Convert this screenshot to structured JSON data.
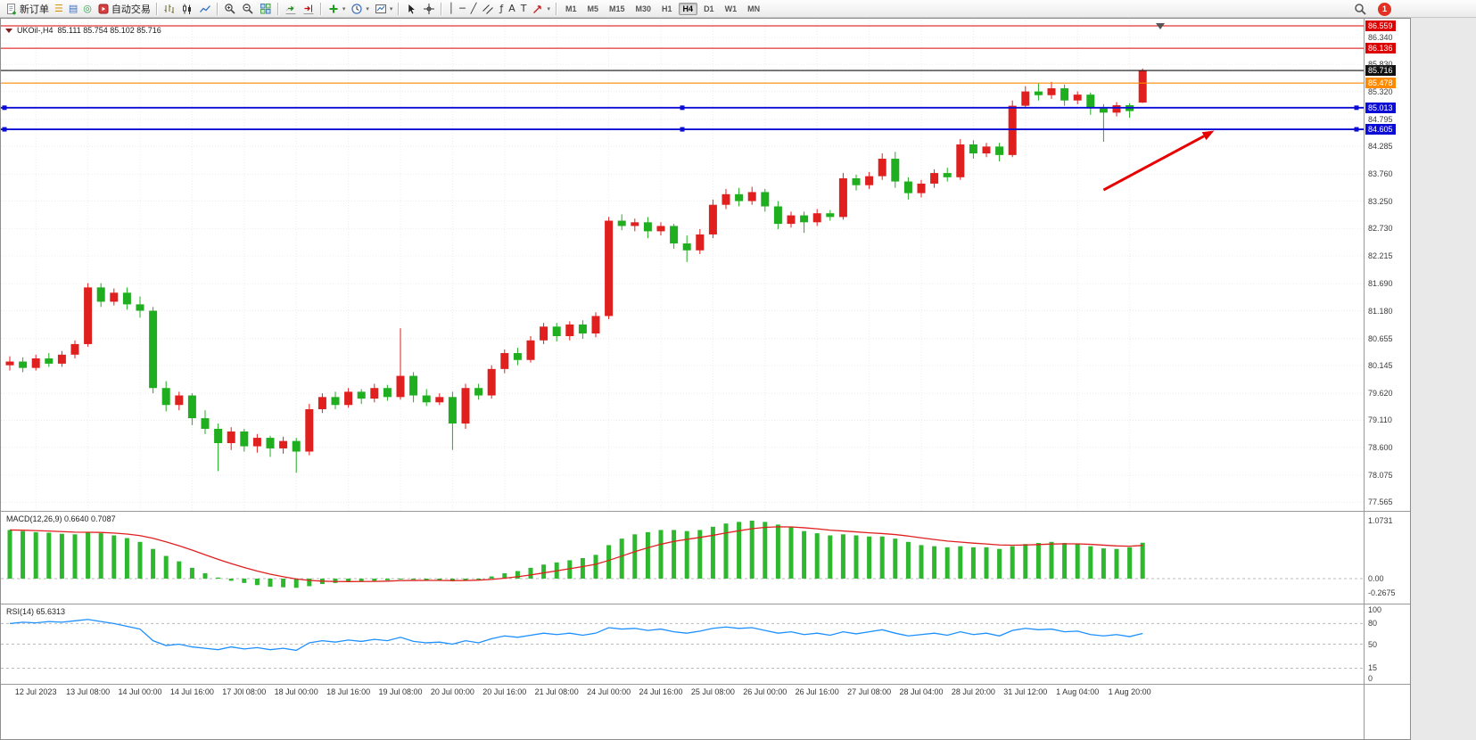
{
  "toolbar": {
    "notification_count": "1",
    "active_timeframe": "H4",
    "timeframes": [
      "M1",
      "M5",
      "M15",
      "M30",
      "H1",
      "H4",
      "D1",
      "W1",
      "MN"
    ],
    "groups": [
      [
        {
          "name": "new-order-button",
          "icon": "order",
          "label": "新订单"
        },
        {
          "name": "market-watch-icon",
          "glyph": "☰",
          "color": "#d09500"
        },
        {
          "name": "data-window-icon",
          "glyph": "▤",
          "color": "#3a6ebf"
        },
        {
          "name": "alerts-icon",
          "glyph": "◎",
          "color": "#2e9e4f"
        },
        {
          "name": "autotrading-button",
          "icon": "autotrading",
          "label": "自动交易"
        }
      ],
      [
        {
          "name": "bar-chart-icon",
          "icon": "bars"
        },
        {
          "name": "candlestick-chart-icon",
          "icon": "candles"
        },
        {
          "name": "line-chart-icon",
          "icon": "line"
        }
      ],
      [
        {
          "name": "zoom-in-icon",
          "icon": "zoom-in"
        },
        {
          "name": "zoom-out-icon",
          "icon": "zoom-out"
        },
        {
          "name": "tile-windows-icon",
          "icon": "tile"
        }
      ],
      [
        {
          "name": "auto-scroll-icon",
          "icon": "autoscroll"
        },
        {
          "name": "chart-shift-icon",
          "icon": "shift"
        }
      ],
      [
        {
          "name": "add-indicator-button",
          "icon": "plus",
          "caret": true
        },
        {
          "name": "period-button",
          "icon": "clock",
          "caret": true
        },
        {
          "name": "template-button",
          "icon": "template",
          "caret": true
        }
      ],
      [
        {
          "name": "cursor-icon",
          "icon": "cursor"
        },
        {
          "name": "crosshair-icon",
          "icon": "crosshair"
        }
      ],
      [
        {
          "name": "vertical-line-icon",
          "glyph": "│",
          "color": "#333"
        },
        {
          "name": "horizontal-line-icon",
          "glyph": "─",
          "color": "#333"
        },
        {
          "name": "trendline-icon",
          "glyph": "╱",
          "color": "#333"
        },
        {
          "name": "channel-icon",
          "icon": "channel"
        },
        {
          "name": "fibonacci-icon",
          "glyph": "ƒ",
          "color": "#333"
        },
        {
          "name": "text-icon",
          "glyph": "A",
          "color": "#333"
        },
        {
          "name": "label-icon",
          "glyph": "T",
          "color": "#333"
        },
        {
          "name": "arrows-button",
          "icon": "arrowtool",
          "caret": true
        }
      ]
    ]
  },
  "chart_window": {
    "symbol_header": {
      "symbol": "UKOil-,H4",
      "ohlc": "85.111 85.754 85.102 85.716"
    },
    "indicator_labels": {
      "macd": "MACD(12,26,9) 0.6640 0.7087",
      "rsi": "RSI(14) 65.6313"
    }
  },
  "chart_data": {
    "type": "candlestick",
    "symbol": "UKOil-",
    "timeframe": "H4",
    "current_bar": {
      "open": 85.111,
      "high": 85.754,
      "low": 85.102,
      "close": 85.716
    },
    "bid_price": 85.716,
    "price_axis": {
      "labels": [
        86.34,
        85.83,
        85.32,
        84.795,
        84.285,
        83.76,
        83.25,
        82.73,
        82.215,
        81.69,
        81.18,
        80.655,
        80.145,
        79.62,
        79.11,
        78.6,
        78.075,
        77.565
      ],
      "min": 77.565,
      "max": 86.34
    },
    "time_labels": [
      "12 Jul 2023",
      "13 Jul 08:00",
      "14 Jul 00:00",
      "14 Jul 16:00",
      "17 J0l 08:00",
      "18 Jul 00:00",
      "18 Jul 16:00",
      "19 Jul 08:00",
      "20 Jul 00:00",
      "20 Jul 16:00",
      "21 Jul 08:00",
      "24 Jul 00:00",
      "24 Jul 16:00",
      "25 Jul 08:00",
      "26 Jul 00:00",
      "26 Jul 16:00",
      "27 Jul 08:00",
      "28 Jul 04:00",
      "28 Jul 20:00",
      "31 Jul 12:00",
      "1 Aug 04:00",
      "1 Aug 20:00"
    ],
    "colors": {
      "up": "#e01f1f",
      "down": "#1fae1f",
      "grid": "#ececec",
      "macd_hist": "#2eb82e",
      "macd_signal": "#e02020",
      "rsi_line": "#1e90ff"
    },
    "candles": [
      [
        80.15,
        80.32,
        80.05,
        80.22
      ],
      [
        80.22,
        80.3,
        80.02,
        80.1
      ],
      [
        80.1,
        80.35,
        80.05,
        80.28
      ],
      [
        80.28,
        80.38,
        80.12,
        80.18
      ],
      [
        80.18,
        80.42,
        80.12,
        80.35
      ],
      [
        80.35,
        80.62,
        80.28,
        80.55
      ],
      [
        80.55,
        81.7,
        80.5,
        81.62
      ],
      [
        81.62,
        81.7,
        81.25,
        81.35
      ],
      [
        81.35,
        81.6,
        81.28,
        81.52
      ],
      [
        81.52,
        81.62,
        81.2,
        81.3
      ],
      [
        81.3,
        81.45,
        81.05,
        81.18
      ],
      [
        81.18,
        81.25,
        79.62,
        79.72
      ],
      [
        79.72,
        79.85,
        79.28,
        79.4
      ],
      [
        79.4,
        79.65,
        79.3,
        79.58
      ],
      [
        79.58,
        79.62,
        79.02,
        79.15
      ],
      [
        79.15,
        79.3,
        78.85,
        78.95
      ],
      [
        78.95,
        79.05,
        78.15,
        78.68
      ],
      [
        78.68,
        78.98,
        78.55,
        78.9
      ],
      [
        78.9,
        78.95,
        78.52,
        78.62
      ],
      [
        78.62,
        78.85,
        78.5,
        78.78
      ],
      [
        78.78,
        78.82,
        78.42,
        78.58
      ],
      [
        78.58,
        78.8,
        78.48,
        78.72
      ],
      [
        78.72,
        78.78,
        78.12,
        78.52
      ],
      [
        78.52,
        79.42,
        78.45,
        79.32
      ],
      [
        79.32,
        79.62,
        79.25,
        79.55
      ],
      [
        79.55,
        79.65,
        79.32,
        79.4
      ],
      [
        79.4,
        79.72,
        79.35,
        79.65
      ],
      [
        79.65,
        79.7,
        79.42,
        79.52
      ],
      [
        79.52,
        79.8,
        79.45,
        79.72
      ],
      [
        79.72,
        79.78,
        79.48,
        79.55
      ],
      [
        79.55,
        80.85,
        79.5,
        79.95
      ],
      [
        79.95,
        80.02,
        79.45,
        79.58
      ],
      [
        79.58,
        79.7,
        79.38,
        79.45
      ],
      [
        79.45,
        79.62,
        79.4,
        79.55
      ],
      [
        79.55,
        79.65,
        78.55,
        79.05
      ],
      [
        79.05,
        79.8,
        78.95,
        79.72
      ],
      [
        79.72,
        79.8,
        79.5,
        79.58
      ],
      [
        79.58,
        80.15,
        79.52,
        80.08
      ],
      [
        80.08,
        80.45,
        80.0,
        80.38
      ],
      [
        80.38,
        80.48,
        80.15,
        80.25
      ],
      [
        80.25,
        80.7,
        80.2,
        80.62
      ],
      [
        80.62,
        80.95,
        80.55,
        80.88
      ],
      [
        80.88,
        80.95,
        80.6,
        80.7
      ],
      [
        80.7,
        80.98,
        80.62,
        80.92
      ],
      [
        80.92,
        81.0,
        80.65,
        80.75
      ],
      [
        80.75,
        81.15,
        80.68,
        81.08
      ],
      [
        81.08,
        82.95,
        81.02,
        82.88
      ],
      [
        82.88,
        83.0,
        82.7,
        82.78
      ],
      [
        82.78,
        82.92,
        82.68,
        82.85
      ],
      [
        82.85,
        82.95,
        82.55,
        82.68
      ],
      [
        82.68,
        82.85,
        82.6,
        82.78
      ],
      [
        82.78,
        82.82,
        82.35,
        82.45
      ],
      [
        82.45,
        82.6,
        82.1,
        82.32
      ],
      [
        82.32,
        82.72,
        82.25,
        82.62
      ],
      [
        82.62,
        83.28,
        82.55,
        83.18
      ],
      [
        83.18,
        83.48,
        83.1,
        83.38
      ],
      [
        83.38,
        83.5,
        83.15,
        83.25
      ],
      [
        83.25,
        83.52,
        83.18,
        83.42
      ],
      [
        83.42,
        83.48,
        83.05,
        83.15
      ],
      [
        83.15,
        83.25,
        82.72,
        82.82
      ],
      [
        82.82,
        83.05,
        82.75,
        82.98
      ],
      [
        82.98,
        83.05,
        82.65,
        82.85
      ],
      [
        82.85,
        83.1,
        82.78,
        83.02
      ],
      [
        83.02,
        83.08,
        82.88,
        82.95
      ],
      [
        82.95,
        83.78,
        82.9,
        83.68
      ],
      [
        83.68,
        83.75,
        83.45,
        83.55
      ],
      [
        83.55,
        83.8,
        83.48,
        83.72
      ],
      [
        83.72,
        84.15,
        83.65,
        84.05
      ],
      [
        84.05,
        84.18,
        83.5,
        83.62
      ],
      [
        83.62,
        83.7,
        83.28,
        83.4
      ],
      [
        83.4,
        83.65,
        83.32,
        83.58
      ],
      [
        83.58,
        83.85,
        83.5,
        83.78
      ],
      [
        83.78,
        83.88,
        83.62,
        83.7
      ],
      [
        83.7,
        84.42,
        83.65,
        84.32
      ],
      [
        84.32,
        84.4,
        84.05,
        84.15
      ],
      [
        84.15,
        84.35,
        84.08,
        84.28
      ],
      [
        84.28,
        84.35,
        84.0,
        84.12
      ],
      [
        84.12,
        85.15,
        84.08,
        85.05
      ],
      [
        85.05,
        85.42,
        85.0,
        85.32
      ],
      [
        85.32,
        85.48,
        85.15,
        85.25
      ],
      [
        85.25,
        85.5,
        85.18,
        85.38
      ],
      [
        85.38,
        85.45,
        85.05,
        85.15
      ],
      [
        85.15,
        85.32,
        85.08,
        85.26
      ],
      [
        85.26,
        85.3,
        84.88,
        85.0
      ],
      [
        85.0,
        85.08,
        84.37,
        84.92
      ],
      [
        84.92,
        85.12,
        84.85,
        85.06
      ],
      [
        85.06,
        85.1,
        84.82,
        84.95
      ],
      [
        85.111,
        85.754,
        85.102,
        85.716
      ]
    ],
    "hlines": [
      {
        "price": 86.559,
        "color": "#dd0000"
      },
      {
        "price": 86.136,
        "color": "#dd0000"
      },
      {
        "price": 85.716,
        "color": "#111111",
        "role": "bid"
      },
      {
        "price": 85.478,
        "color": "#ff8a00"
      },
      {
        "price": 85.013,
        "color": "#0b0bd6",
        "selected": true
      },
      {
        "price": 84.605,
        "color": "#0b0bd6",
        "selected": true
      }
    ],
    "annotations": [
      {
        "type": "arrow",
        "color": "#e80000",
        "from": {
          "candle_index": 84,
          "price": 83.46
        },
        "to": {
          "candle_index": 92.5,
          "price": 84.58
        }
      }
    ],
    "macd": {
      "label": "MACD(12,26,9)",
      "value_main": "0.6640",
      "value_signal": "0.7087",
      "axis_labels": [
        "1.0731",
        "0.00",
        "-0.2675"
      ],
      "range": [
        -0.2675,
        1.0731
      ],
      "values": [
        0.9,
        0.88,
        0.86,
        0.85,
        0.83,
        0.82,
        0.85,
        0.84,
        0.8,
        0.75,
        0.68,
        0.55,
        0.42,
        0.32,
        0.2,
        0.1,
        0.02,
        -0.04,
        -0.08,
        -0.12,
        -0.15,
        -0.16,
        -0.17,
        -0.14,
        -0.1,
        -0.08,
        -0.06,
        -0.05,
        -0.04,
        -0.03,
        0.0,
        -0.02,
        -0.03,
        -0.03,
        -0.05,
        -0.03,
        0.0,
        0.04,
        0.1,
        0.14,
        0.2,
        0.26,
        0.3,
        0.34,
        0.38,
        0.44,
        0.62,
        0.74,
        0.82,
        0.86,
        0.9,
        0.9,
        0.88,
        0.9,
        0.96,
        1.02,
        1.05,
        1.0731,
        1.05,
        1.0,
        0.95,
        0.88,
        0.84,
        0.8,
        0.82,
        0.8,
        0.78,
        0.78,
        0.74,
        0.68,
        0.62,
        0.6,
        0.58,
        0.6,
        0.58,
        0.58,
        0.55,
        0.6,
        0.64,
        0.66,
        0.68,
        0.66,
        0.64,
        0.6,
        0.56,
        0.55,
        0.58,
        0.664
      ]
    },
    "rsi": {
      "label": "RSI(14)",
      "value": "65.6313",
      "axis_labels": [
        "100",
        "80",
        "50",
        "15",
        "0"
      ],
      "axis_values": [
        100,
        80,
        50,
        15,
        0
      ],
      "levels": [
        80,
        50,
        15
      ],
      "range": [
        0,
        100
      ],
      "values": [
        80,
        82,
        81,
        83,
        82,
        84,
        86,
        83,
        80,
        76,
        72,
        55,
        48,
        50,
        46,
        44,
        42,
        46,
        43,
        45,
        42,
        44,
        41,
        52,
        55,
        53,
        56,
        54,
        57,
        55,
        60,
        54,
        52,
        53,
        50,
        55,
        52,
        58,
        62,
        60,
        63,
        66,
        64,
        66,
        63,
        66,
        74,
        72,
        73,
        70,
        72,
        68,
        66,
        69,
        73,
        75,
        73,
        74,
        70,
        66,
        68,
        64,
        66,
        63,
        68,
        65,
        68,
        71,
        66,
        62,
        64,
        66,
        63,
        68,
        64,
        66,
        62,
        70,
        73,
        71,
        72,
        68,
        69,
        64,
        62,
        64,
        61,
        65.6313
      ]
    }
  }
}
